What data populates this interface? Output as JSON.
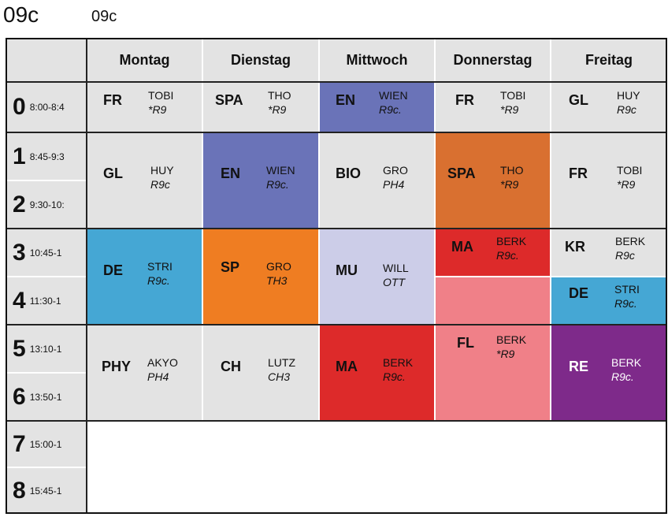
{
  "title_big": "09c",
  "title_small": "09c",
  "days": [
    "Montag",
    "Dienstag",
    "Mittwoch",
    "Donnerstag",
    "Freitag"
  ],
  "periods": [
    {
      "num": "0",
      "time": "8:00-8:4"
    },
    {
      "num": "1",
      "time": "8:45-9:3"
    },
    {
      "num": "2",
      "time": "9:30-10:"
    },
    {
      "num": "3",
      "time": "10:45-1"
    },
    {
      "num": "4",
      "time": "11:30-1"
    },
    {
      "num": "5",
      "time": "13:10-1"
    },
    {
      "num": "6",
      "time": "13:50-1"
    },
    {
      "num": "7",
      "time": "15:00-1"
    },
    {
      "num": "8",
      "time": "15:45-1"
    }
  ],
  "colors": {
    "grey": "#e3e3e3",
    "english": "#6a73b8",
    "spanish_thu": "#d97030",
    "german": "#45a7d4",
    "sport": "#ef7d22",
    "music": "#cccde8",
    "math": "#dd2a2a",
    "french_thu": "#f08088",
    "religion": "#7e2a8a"
  },
  "lessons": {
    "mon_0": {
      "subject": "FR",
      "teacher": "TOBI",
      "room": "*R9"
    },
    "tue_0": {
      "subject": "SPA",
      "teacher": "THO",
      "room": "*R9"
    },
    "wed_0": {
      "subject": "EN",
      "teacher": "WIEN",
      "room": "R9c."
    },
    "thu_0": {
      "subject": "FR",
      "teacher": "TOBI",
      "room": "*R9"
    },
    "fri_0": {
      "subject": "GL",
      "teacher": "HUY",
      "room": "R9c"
    },
    "mon_12": {
      "subject": "GL",
      "teacher": "HUY",
      "room": "R9c"
    },
    "tue_12": {
      "subject": "EN",
      "teacher": "WIEN",
      "room": "R9c."
    },
    "wed_12": {
      "subject": "BIO",
      "teacher": "GRO",
      "room": "PH4"
    },
    "thu_12": {
      "subject": "SPA",
      "teacher": "THO",
      "room": "*R9"
    },
    "fri_12": {
      "subject": "FR",
      "teacher": "TOBI",
      "room": "*R9"
    },
    "mon_34": {
      "subject": "DE",
      "teacher": "STRI",
      "room": "R9c."
    },
    "tue_34": {
      "subject": "SP",
      "teacher": "GRO",
      "room": "TH3"
    },
    "wed_34": {
      "subject": "MU",
      "teacher": "WILL",
      "room": "OTT"
    },
    "thu_3": {
      "subject": "MA",
      "teacher": "BERK",
      "room": "R9c."
    },
    "fri_3": {
      "subject": "KR",
      "teacher": "BERK",
      "room": "R9c"
    },
    "fri_4": {
      "subject": "DE",
      "teacher": "STRI",
      "room": "R9c."
    },
    "thu_46": {
      "subject": "FL",
      "teacher": "BERK",
      "room": "*R9"
    },
    "mon_56": {
      "subject": "PHY",
      "teacher": "AKYO",
      "room": "PH4"
    },
    "tue_56": {
      "subject": "CH",
      "teacher": "LUTZ",
      "room": "CH3"
    },
    "wed_56": {
      "subject": "MA",
      "teacher": "BERK",
      "room": "R9c."
    },
    "fri_56": {
      "subject": "RE",
      "teacher": "BERK",
      "room": "R9c."
    }
  }
}
